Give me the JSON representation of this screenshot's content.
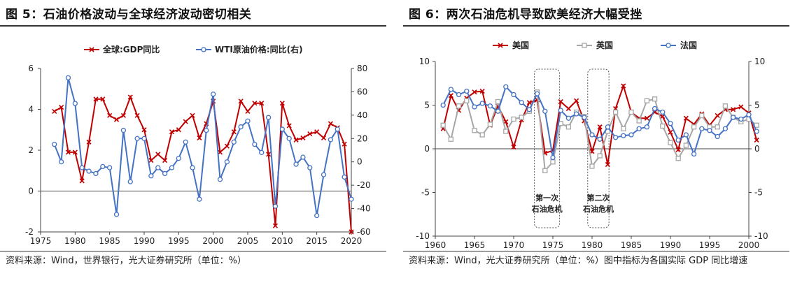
{
  "panel1": {
    "title": "图 5：石油价格波动与全球经济波动密切相关",
    "source": "资料来源：Wind，世界银行，光大证券研究所（单位：%）"
  },
  "panel2": {
    "title": "图 6：两次石油危机导致欧美经济大幅受挫",
    "source": "资料来源：Wind，光大证券研究所（单位：%）图中指标为各国实际 GDP 同比增速"
  },
  "chart_data": [
    {
      "type": "line",
      "title": "",
      "xlabel": "",
      "ylabel": "",
      "xlim": [
        1975,
        2020
      ],
      "xticks": [
        1975,
        1980,
        1985,
        1990,
        1995,
        2000,
        2005,
        2010,
        2015,
        2020
      ],
      "ylim": [
        -2,
        6
      ],
      "yticks": [
        -2,
        0,
        2,
        4,
        6
      ],
      "y2lim": [
        -60,
        80
      ],
      "y2ticks": [
        -60,
        -40,
        -20,
        0,
        20,
        40,
        60,
        80
      ],
      "legend_position": "top",
      "grid": false,
      "series": [
        {
          "name": "全球:GDP同比",
          "axis": "left",
          "color": "#c00000",
          "marker": "x",
          "x": [
            1977,
            1978,
            1979,
            1980,
            1981,
            1982,
            1983,
            1984,
            1985,
            1986,
            1987,
            1988,
            1989,
            1990,
            1991,
            1992,
            1993,
            1994,
            1995,
            1996,
            1997,
            1998,
            1999,
            2000,
            2001,
            2002,
            2003,
            2004,
            2005,
            2006,
            2007,
            2008,
            2009,
            2010,
            2011,
            2012,
            2013,
            2014,
            2015,
            2016,
            2017,
            2018,
            2019,
            2020
          ],
          "y": [
            3.9,
            4.1,
            1.9,
            1.9,
            0.5,
            2.4,
            4.5,
            4.5,
            3.7,
            3.5,
            3.7,
            4.6,
            3.7,
            3.0,
            1.5,
            1.8,
            1.5,
            2.9,
            3.0,
            3.4,
            3.7,
            2.6,
            3.3,
            4.4,
            1.9,
            2.2,
            2.9,
            4.4,
            3.9,
            4.3,
            4.3,
            1.8,
            -1.7,
            4.3,
            3.2,
            2.5,
            2.6,
            2.8,
            2.9,
            2.6,
            3.3,
            3.1,
            2.3,
            -2.0
          ]
        },
        {
          "name": "WTI原油价格:同比(右)",
          "axis": "right",
          "color": "#4472c4",
          "marker": "o",
          "x": [
            1977,
            1978,
            1979,
            1980,
            1981,
            1982,
            1983,
            1984,
            1985,
            1986,
            1987,
            1988,
            1989,
            1990,
            1991,
            1992,
            1993,
            1994,
            1995,
            1996,
            1997,
            1998,
            1999,
            2000,
            2001,
            2002,
            2003,
            2004,
            2005,
            2006,
            2007,
            2008,
            2009,
            2010,
            2011,
            2012,
            2013,
            2014,
            2015,
            2016,
            2017,
            2018,
            2019,
            2020
          ],
          "y": [
            15,
            0,
            72,
            50,
            -5,
            -8,
            -10,
            -4,
            -5,
            -45,
            27,
            -17,
            20,
            20,
            -12,
            -5,
            -10,
            -5,
            3,
            17,
            -5,
            -32,
            27,
            58,
            -15,
            0,
            17,
            30,
            35,
            15,
            8,
            38,
            -38,
            28,
            20,
            -2,
            4,
            -5,
            -46,
            -11,
            19,
            28,
            -13,
            -32
          ]
        }
      ]
    },
    {
      "type": "line",
      "title": "",
      "xlabel": "",
      "ylabel": "",
      "xlim": [
        1960,
        2000
      ],
      "xticks": [
        1960,
        1965,
        1970,
        1975,
        1980,
        1985,
        1990,
        1995,
        2000
      ],
      "ylim": [
        -10,
        10
      ],
      "yticks": [
        -10,
        -5,
        0,
        5,
        10
      ],
      "legend_position": "top",
      "grid": false,
      "annotations": [
        {
          "text": "第一次\n石油危机",
          "x_range": [
            1973,
            1975.5
          ]
        },
        {
          "text": "第二次\n石油危机",
          "x_range": [
            1979.8,
            1981.8
          ]
        }
      ],
      "series": [
        {
          "name": "美国",
          "color": "#c00000",
          "marker": "x",
          "x": [
            1961,
            1962,
            1963,
            1964,
            1965,
            1966,
            1967,
            1968,
            1969,
            1970,
            1971,
            1972,
            1973,
            1974,
            1975,
            1976,
            1977,
            1978,
            1979,
            1980,
            1981,
            1982,
            1983,
            1984,
            1985,
            1986,
            1987,
            1988,
            1989,
            1990,
            1991,
            1992,
            1993,
            1994,
            1995,
            1996,
            1997,
            1998,
            1999,
            2000,
            2001
          ],
          "y": [
            2.3,
            6.1,
            4.4,
            5.8,
            6.5,
            6.6,
            2.7,
            4.9,
            3.1,
            0.2,
            3.3,
            5.3,
            5.6,
            -0.5,
            -0.2,
            5.4,
            4.6,
            5.5,
            3.2,
            -0.3,
            2.5,
            -1.8,
            4.6,
            7.2,
            4.2,
            3.5,
            3.5,
            4.2,
            3.7,
            1.9,
            -0.1,
            3.5,
            2.8,
            4.0,
            2.7,
            3.8,
            4.5,
            4.5,
            4.8,
            4.1,
            1.0
          ]
        },
        {
          "name": "英国",
          "color": "#a6a6a6",
          "marker": "s",
          "x": [
            1961,
            1962,
            1963,
            1964,
            1965,
            1966,
            1967,
            1968,
            1969,
            1970,
            1971,
            1972,
            1973,
            1974,
            1975,
            1976,
            1977,
            1978,
            1979,
            1980,
            1981,
            1982,
            1983,
            1984,
            1985,
            1986,
            1987,
            1988,
            1989,
            1990,
            1991,
            1992,
            1993,
            1994,
            1995,
            1996,
            1997,
            1998,
            1999,
            2000,
            2001
          ],
          "y": [
            2.7,
            1.1,
            4.9,
            5.5,
            2.1,
            1.6,
            2.8,
            5.4,
            2.0,
            3.4,
            3.6,
            4.3,
            6.5,
            -2.5,
            -1.5,
            2.9,
            2.5,
            4.2,
            3.7,
            -2.0,
            -0.8,
            2.0,
            4.2,
            2.3,
            4.2,
            3.2,
            5.5,
            5.7,
            2.6,
            0.7,
            -1.1,
            0.4,
            2.5,
            3.8,
            2.5,
            2.5,
            4.9,
            3.6,
            3.1,
            3.4,
            2.7
          ]
        },
        {
          "name": "法国",
          "color": "#4472c4",
          "marker": "o",
          "x": [
            1961,
            1962,
            1963,
            1964,
            1965,
            1966,
            1967,
            1968,
            1969,
            1970,
            1971,
            1972,
            1973,
            1974,
            1975,
            1976,
            1977,
            1978,
            1979,
            1980,
            1981,
            1982,
            1983,
            1984,
            1985,
            1986,
            1987,
            1988,
            1989,
            1990,
            1991,
            1992,
            1993,
            1994,
            1995,
            1996,
            1997,
            1998,
            1999,
            2000,
            2001
          ],
          "y": [
            5.0,
            6.8,
            6.2,
            6.6,
            4.8,
            5.2,
            4.9,
            4.3,
            7.1,
            6.2,
            5.3,
            4.5,
            6.3,
            4.3,
            -1.0,
            4.4,
            3.5,
            4.0,
            3.6,
            1.6,
            1.1,
            2.5,
            1.3,
            1.5,
            1.6,
            2.3,
            2.5,
            4.6,
            4.2,
            2.9,
            1.0,
            1.6,
            -0.6,
            2.3,
            2.1,
            1.4,
            2.3,
            3.6,
            3.4,
            3.9,
            2.0
          ]
        }
      ]
    }
  ]
}
